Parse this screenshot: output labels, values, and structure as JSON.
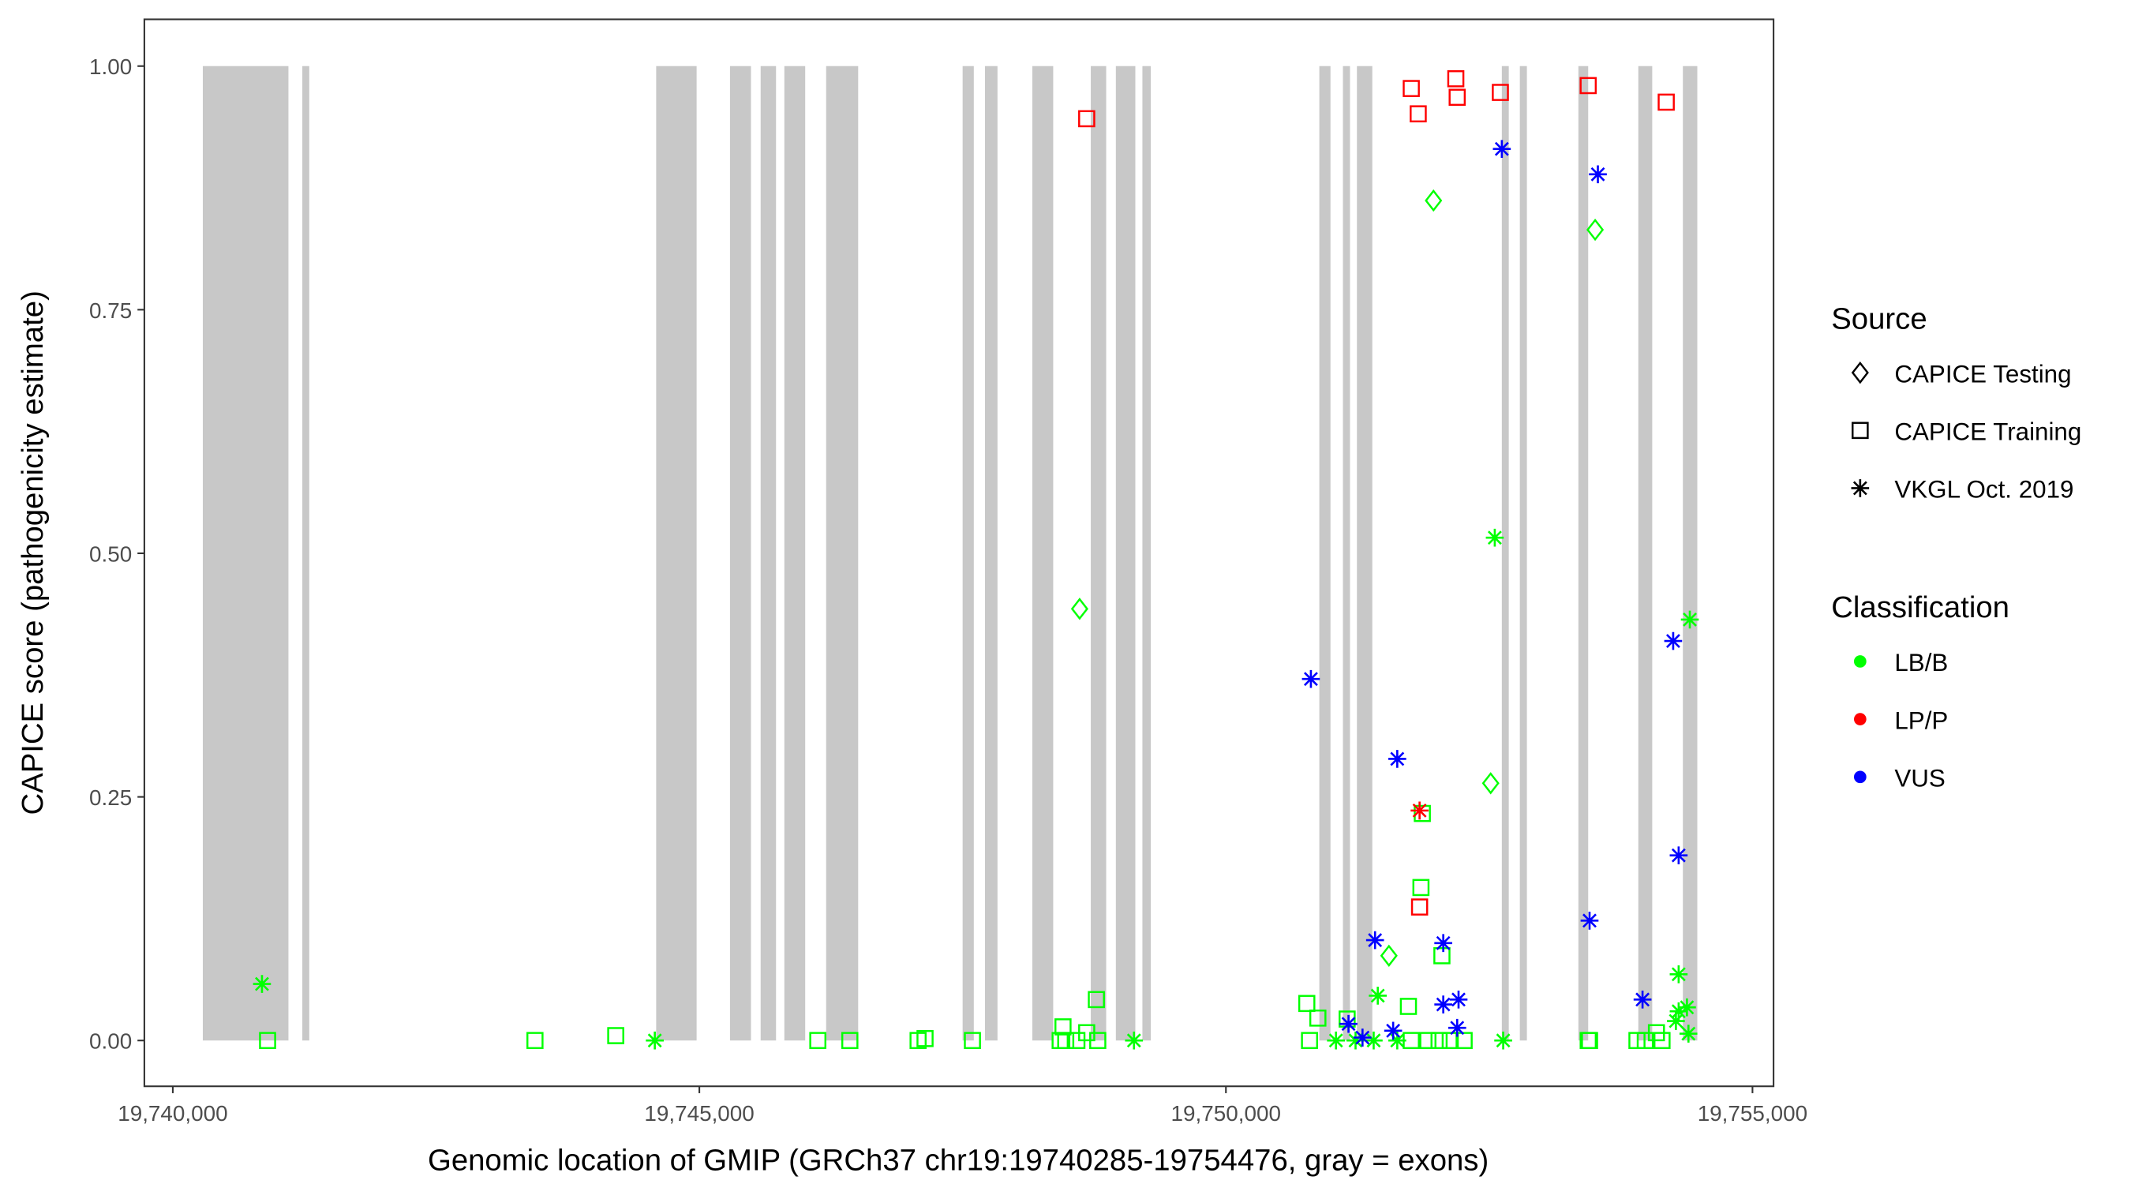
{
  "chart_data": {
    "type": "scatter",
    "xlabel": "Genomic location of GMIP (GRCh37 chr19:19740285-19754476, gray = exons)",
    "ylabel": "CAPICE score (pathogenicity estimate)",
    "xlim": [
      19739730,
      19755200
    ],
    "ylim": [
      -0.047,
      1.048
    ],
    "x_ticks": [
      19740000,
      19745000,
      19750000,
      19755000
    ],
    "x_tick_labels": [
      "19,740,000",
      "19,745,000",
      "19,750,000",
      "19,755,000"
    ],
    "y_ticks": [
      0,
      0.25,
      0.5,
      0.75,
      1.0
    ],
    "y_tick_labels": [
      "0.00",
      "0.25",
      "0.50",
      "0.75",
      "1.00"
    ],
    "grid": false,
    "exons": [
      [
        19740285,
        19741098
      ],
      [
        19741230,
        19741296
      ],
      [
        19744590,
        19744974
      ],
      [
        19745291,
        19745490
      ],
      [
        19745582,
        19745728
      ],
      [
        19745807,
        19746005
      ],
      [
        19746204,
        19746508
      ],
      [
        19747500,
        19747606
      ],
      [
        19747712,
        19747831
      ],
      [
        19748162,
        19748360
      ],
      [
        19748717,
        19748863
      ],
      [
        19748955,
        19749140
      ],
      [
        19749207,
        19749286
      ],
      [
        19750887,
        19750993
      ],
      [
        19751111,
        19751178
      ],
      [
        19751244,
        19751390
      ],
      [
        19752620,
        19752686
      ],
      [
        19752791,
        19752858
      ],
      [
        19753347,
        19753440
      ],
      [
        19753916,
        19754048
      ],
      [
        19754339,
        19754476
      ]
    ],
    "legend": {
      "placement": "right",
      "source_title": "Source",
      "source_items": [
        {
          "label": "CAPICE Testing",
          "shape": "diamond"
        },
        {
          "label": "CAPICE Training",
          "shape": "square"
        },
        {
          "label": "VKGL Oct. 2019",
          "shape": "asterisk"
        }
      ],
      "class_title": "Classification",
      "class_items": [
        {
          "label": "LB/B",
          "color": "#00ff00"
        },
        {
          "label": "LP/P",
          "color": "#ff0000"
        },
        {
          "label": "VUS",
          "color": "#0000ff"
        }
      ]
    },
    "series": [
      {
        "source": "VKGL Oct. 2019",
        "classification": "LB/B",
        "points": [
          [
            19740847,
            0.058
          ],
          [
            19744577,
            0
          ],
          [
            19749127,
            0
          ],
          [
            19751045,
            0
          ],
          [
            19751231,
            0
          ],
          [
            19751403,
            0
          ],
          [
            19751627,
            0
          ],
          [
            19751442,
            0.046
          ],
          [
            19752553,
            0.516
          ],
          [
            19752633,
            0
          ],
          [
            19754405,
            0.432
          ],
          [
            19754299,
            0.068
          ],
          [
            19754299,
            0.03
          ],
          [
            19754378,
            0.034
          ],
          [
            19754273,
            0.02
          ],
          [
            19754392,
            0.007
          ]
        ]
      },
      {
        "source": "CAPICE Testing",
        "classification": "LB/B",
        "points": [
          [
            19748611,
            0.443
          ],
          [
            19751971,
            0.862
          ],
          [
            19753506,
            0.832
          ],
          [
            19752514,
            0.264
          ],
          [
            19751548,
            0.087
          ]
        ]
      },
      {
        "source": "CAPICE Training",
        "classification": "LB/B",
        "points": [
          [
            19740900,
            0
          ],
          [
            19743439,
            0
          ],
          [
            19744206,
            0.005
          ],
          [
            19746125,
            0
          ],
          [
            19746429,
            0
          ],
          [
            19747077,
            0
          ],
          [
            19747143,
            0.002
          ],
          [
            19747593,
            0
          ],
          [
            19748426,
            0
          ],
          [
            19748453,
            0.014
          ],
          [
            19748479,
            0
          ],
          [
            19748585,
            0
          ],
          [
            19748678,
            0.008
          ],
          [
            19748783,
            0
          ],
          [
            19748770,
            0.042
          ],
          [
            19750768,
            0.038
          ],
          [
            19750873,
            0.023
          ],
          [
            19750794,
            0
          ],
          [
            19751151,
            0.022
          ],
          [
            19751733,
            0.035
          ],
          [
            19752051,
            0.087
          ],
          [
            19751852,
            0.157
          ],
          [
            19751865,
            0.233
          ],
          [
            19751760,
            0
          ],
          [
            19751918,
            0
          ],
          [
            19752024,
            0
          ],
          [
            19752130,
            0
          ],
          [
            19752262,
            0
          ],
          [
            19753440,
            0
          ],
          [
            19753453,
            0
          ],
          [
            19753903,
            0
          ],
          [
            19753982,
            0
          ],
          [
            19754088,
            0.008
          ],
          [
            19754141,
            0
          ]
        ]
      },
      {
        "source": "CAPICE Training",
        "classification": "LP/P",
        "points": [
          [
            19748678,
            0.946
          ],
          [
            19751760,
            0.977
          ],
          [
            19751826,
            0.951
          ],
          [
            19752183,
            0.987
          ],
          [
            19752196,
            0.968
          ],
          [
            19752606,
            0.973
          ],
          [
            19753440,
            0.98
          ],
          [
            19754181,
            0.963
          ],
          [
            19751839,
            0.137
          ]
        ]
      },
      {
        "source": "VKGL Oct. 2019",
        "classification": "LP/P",
        "points": [
          [
            19751839,
            0.236
          ]
        ]
      },
      {
        "source": "VKGL Oct. 2019",
        "classification": "VUS",
        "points": [
          [
            19752620,
            0.915
          ],
          [
            19753532,
            0.889
          ],
          [
            19750807,
            0.371
          ],
          [
            19751627,
            0.289
          ],
          [
            19753453,
            0.123
          ],
          [
            19751416,
            0.103
          ],
          [
            19752064,
            0.1
          ],
          [
            19754247,
            0.41
          ],
          [
            19754299,
            0.19
          ],
          [
            19753956,
            0.042
          ],
          [
            19751164,
            0.017
          ],
          [
            19751588,
            0.01
          ],
          [
            19751297,
            0.003
          ],
          [
            19752064,
            0.037
          ],
          [
            19752209,
            0.042
          ],
          [
            19752196,
            0.013
          ]
        ]
      }
    ]
  }
}
